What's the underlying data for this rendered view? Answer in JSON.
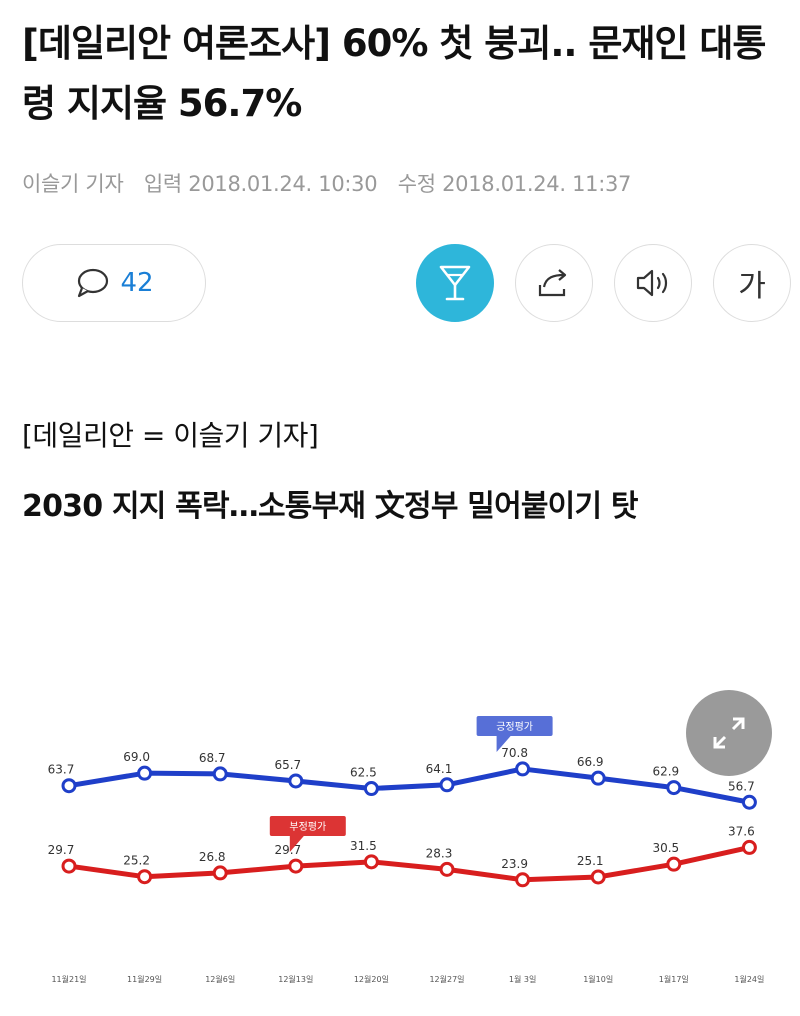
{
  "article": {
    "title": "[데일리안 여론조사] 60% 첫 붕괴.. 문재인 대통령 지지율 56.7%",
    "author": "이슬기 기자",
    "published": "입력 2018.01.24. 10:30",
    "modified": "수정 2018.01.24. 11:37",
    "reporter_line": "[데일리안 = 이슬기 기자]",
    "subhead": "2030 지지 폭락…소통부재 文정부 밀어붙이기 탓"
  },
  "toolbar": {
    "comment_count": "42",
    "icons": [
      "comment-icon",
      "cheers-icon",
      "share-icon",
      "speaker-icon",
      "font-size-icon"
    ],
    "font_button_label": "가",
    "active_color": "#2eb6da"
  },
  "chart_data": {
    "type": "line",
    "categories": [
      "11월21일",
      "11월29일",
      "12월6일",
      "12월13일",
      "12월20일",
      "12월27일",
      "1월 3일",
      "1월10일",
      "1월17일",
      "1월24일"
    ],
    "series": [
      {
        "name": "긍정평가",
        "color": "#1f3fc9",
        "values": [
          63.7,
          69.0,
          68.7,
          65.7,
          62.5,
          64.1,
          70.8,
          66.9,
          62.9,
          56.7
        ]
      },
      {
        "name": "부정평가",
        "color": "#d81e1e",
        "values": [
          29.7,
          25.2,
          26.8,
          29.7,
          31.5,
          28.3,
          23.9,
          25.1,
          30.5,
          37.6
        ]
      }
    ],
    "ylim": [
      20,
      75
    ],
    "grid": false,
    "legend": "callouts"
  }
}
